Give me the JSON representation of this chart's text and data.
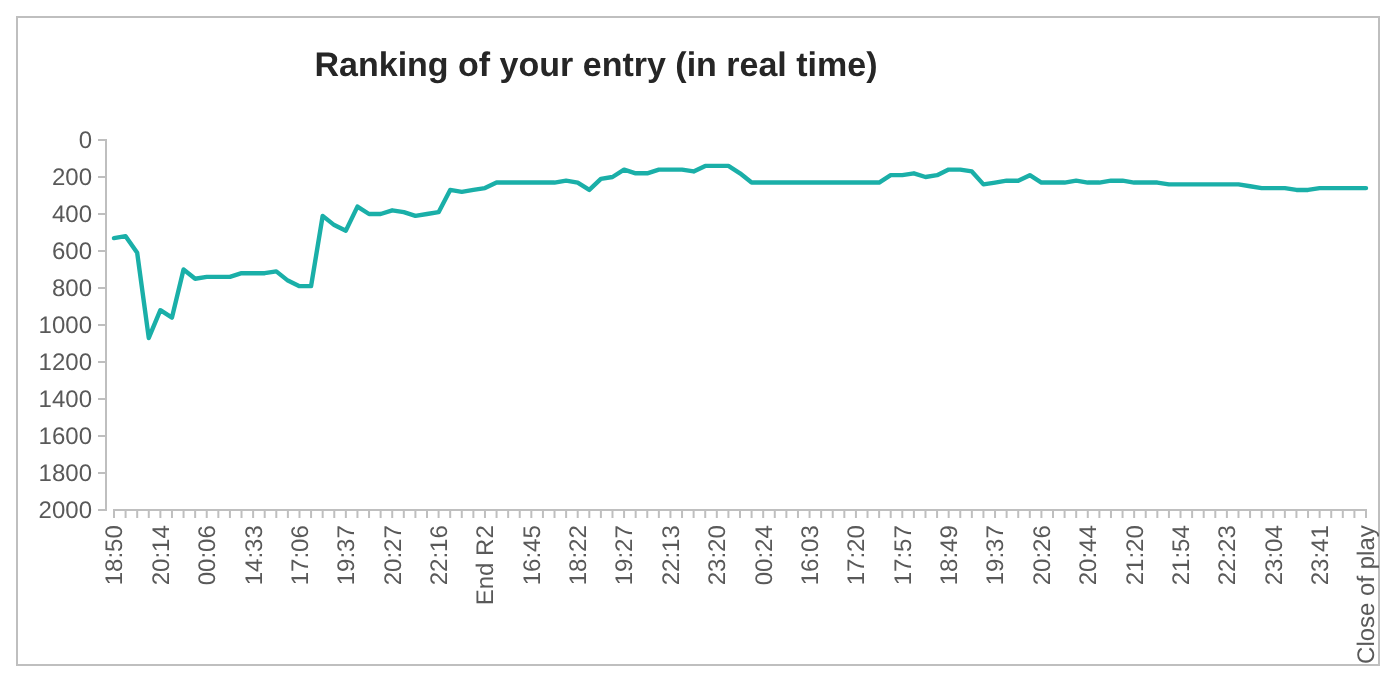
{
  "chart_data": {
    "type": "line",
    "title": "Ranking of your entry (in real time)",
    "categories": [
      "18:50",
      null,
      null,
      null,
      "20:14",
      null,
      null,
      null,
      "00:06",
      null,
      null,
      null,
      "14:33",
      null,
      null,
      null,
      "17:06",
      null,
      null,
      null,
      "19:37",
      null,
      null,
      null,
      "20:27",
      null,
      null,
      null,
      "22:16",
      null,
      null,
      null,
      "End R2",
      null,
      null,
      null,
      "16:45",
      null,
      null,
      null,
      "18:22",
      null,
      null,
      null,
      "19:27",
      null,
      null,
      null,
      "22:13",
      null,
      null,
      null,
      "23:20",
      null,
      null,
      null,
      "00:24",
      null,
      null,
      null,
      "16:03",
      null,
      null,
      null,
      "17:20",
      null,
      null,
      null,
      "17:57",
      null,
      null,
      null,
      "18:49",
      null,
      null,
      null,
      "19:37",
      null,
      null,
      null,
      "20:26",
      null,
      null,
      null,
      "20:44",
      null,
      null,
      null,
      "21:20",
      null,
      null,
      null,
      "21:54",
      null,
      null,
      null,
      "22:23",
      null,
      null,
      null,
      "23:04",
      null,
      null,
      null,
      "23:41",
      null,
      null,
      null,
      "Close of play"
    ],
    "series": [
      {
        "color": "#1aafa8",
        "values": [
          530,
          520,
          610,
          1070,
          920,
          960,
          700,
          750,
          740,
          740,
          740,
          720,
          720,
          720,
          710,
          760,
          790,
          790,
          410,
          460,
          490,
          360,
          400,
          400,
          380,
          390,
          410,
          400,
          390,
          270,
          280,
          270,
          260,
          230,
          230,
          230,
          230,
          230,
          230,
          220,
          230,
          270,
          210,
          200,
          160,
          180,
          180,
          160,
          160,
          160,
          170,
          140,
          140,
          140,
          180,
          230,
          230,
          230,
          230,
          230,
          230,
          230,
          230,
          230,
          230,
          230,
          230,
          190,
          190,
          180,
          200,
          190,
          160,
          160,
          170,
          240,
          230,
          220,
          220,
          190,
          230,
          230,
          230,
          220,
          230,
          230,
          220,
          220,
          230,
          230,
          230,
          240,
          240,
          240,
          240,
          240,
          240,
          240,
          250,
          260,
          260,
          260,
          270,
          270,
          260,
          260,
          260,
          260,
          260
        ]
      }
    ],
    "ylim": [
      2000,
      0
    ],
    "yticks": [
      0,
      200,
      400,
      600,
      800,
      1000,
      1200,
      1400,
      1600,
      1800,
      2000
    ],
    "grid": false,
    "marker": "none",
    "line_style": "solid"
  }
}
